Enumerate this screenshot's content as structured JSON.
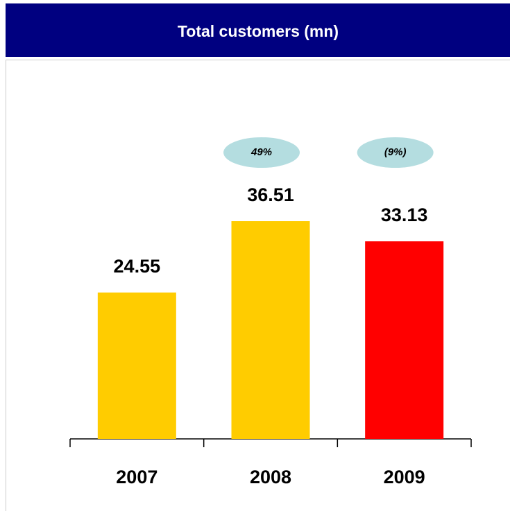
{
  "chart_data": {
    "type": "bar",
    "title": "Total customers (mn)",
    "categories": [
      "2007",
      "2008",
      "2009"
    ],
    "values": [
      24.55,
      36.51,
      33.13
    ],
    "colors": [
      "#ffcc00",
      "#ffcc00",
      "#ff0000"
    ],
    "growth_labels": [
      null,
      "49%",
      "(9%)"
    ]
  }
}
